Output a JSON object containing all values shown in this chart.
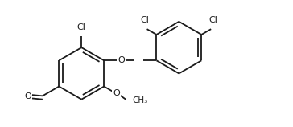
{
  "bg_color": "#ffffff",
  "line_color": "#1a1a1a",
  "line_width": 1.3,
  "font_size": 8.0,
  "fig_width": 3.64,
  "fig_height": 1.58,
  "dpi": 100,
  "xlim": [
    0.2,
    5.8
  ],
  "ylim": [
    0.05,
    2.55
  ]
}
